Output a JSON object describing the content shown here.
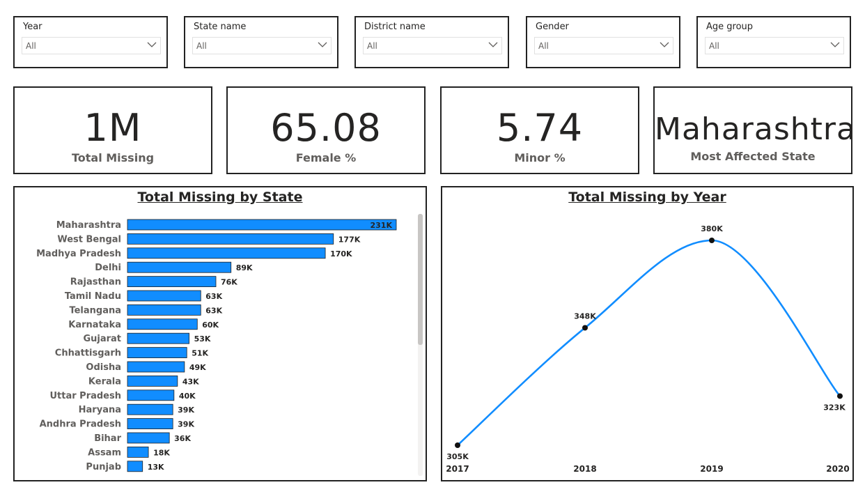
{
  "filters": [
    {
      "label": "Year",
      "value": "All"
    },
    {
      "label": "State name",
      "value": "All"
    },
    {
      "label": "District name",
      "value": "All"
    },
    {
      "label": "Gender",
      "value": "All"
    },
    {
      "label": "Age group",
      "value": "All"
    }
  ],
  "kpis": {
    "total_missing": {
      "value": "1M",
      "label": "Total Missing"
    },
    "female_pct": {
      "value": "65.08",
      "label": "Female %"
    },
    "minor_pct": {
      "value": "5.74",
      "label": "Minor %"
    },
    "most_affected": {
      "value": "Maharashtra",
      "label": "Most Affected State"
    }
  },
  "colors": {
    "bar": "#118DFF",
    "line": "#118DFF",
    "border": "#222222"
  },
  "chart_data": [
    {
      "type": "bar",
      "orientation": "horizontal",
      "title": "Total Missing by State",
      "categories": [
        "Maharashtra",
        "West Bengal",
        "Madhya Pradesh",
        "Delhi",
        "Rajasthan",
        "Tamil Nadu",
        "Telangana",
        "Karnataka",
        "Gujarat",
        "Chhattisgarh",
        "Odisha",
        "Kerala",
        "Uttar Pradesh",
        "Haryana",
        "Andhra Pradesh",
        "Bihar",
        "Assam",
        "Punjab"
      ],
      "values": [
        231000,
        177000,
        170000,
        89000,
        76000,
        63000,
        63000,
        60000,
        53000,
        51000,
        49000,
        43000,
        40000,
        39000,
        39000,
        36000,
        18000,
        13000
      ],
      "data_labels": [
        "231K",
        "177K",
        "170K",
        "89K",
        "76K",
        "63K",
        "63K",
        "60K",
        "53K",
        "51K",
        "49K",
        "43K",
        "40K",
        "39K",
        "39K",
        "36K",
        "18K",
        "13K"
      ],
      "grid": false,
      "scrollbar": true
    },
    {
      "type": "line",
      "title": "Total Missing by Year",
      "x": [
        "2017",
        "2018",
        "2019",
        "2020"
      ],
      "values": [
        305000,
        348000,
        380000,
        323000
      ],
      "data_labels": [
        "305K",
        "348K",
        "380K",
        "323K"
      ],
      "smooth": true,
      "markers": true,
      "grid": false
    }
  ]
}
